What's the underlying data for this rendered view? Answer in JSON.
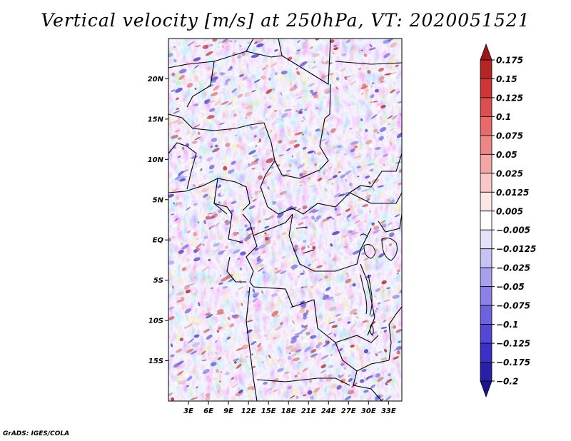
{
  "title": "Vertical velocity [m/s] at 250hPa, VT: 2020051521",
  "credit": "GrADS: IGES/COLA",
  "map": {
    "lon_range": [
      0,
      35
    ],
    "lat_range": [
      -20,
      25
    ],
    "lat_ticks": [
      {
        "value": 20,
        "label": "20N"
      },
      {
        "value": 15,
        "label": "15N"
      },
      {
        "value": 10,
        "label": "10N"
      },
      {
        "value": 5,
        "label": "5N"
      },
      {
        "value": 0,
        "label": "EQ"
      },
      {
        "value": -5,
        "label": "5S"
      },
      {
        "value": -10,
        "label": "10S"
      },
      {
        "value": -15,
        "label": "15S"
      }
    ],
    "lon_ticks": [
      {
        "value": 3,
        "label": "3E"
      },
      {
        "value": 6,
        "label": "6E"
      },
      {
        "value": 9,
        "label": "9E"
      },
      {
        "value": 12,
        "label": "12E"
      },
      {
        "value": 15,
        "label": "15E"
      },
      {
        "value": 18,
        "label": "18E"
      },
      {
        "value": 21,
        "label": "21E"
      },
      {
        "value": 24,
        "label": "24E"
      },
      {
        "value": 27,
        "label": "27E"
      },
      {
        "value": 30,
        "label": "30E"
      },
      {
        "value": 33,
        "label": "33E"
      }
    ]
  },
  "colorbar": {
    "labels": [
      "0.175",
      "0.15",
      "0.125",
      "0.1",
      "0.075",
      "0.05",
      "0.025",
      "0.0125",
      "0.005",
      "−0.005",
      "−0.0125",
      "−0.025",
      "−0.05",
      "−0.075",
      "−0.1",
      "−0.125",
      "−0.175",
      "−0.2"
    ],
    "colors": [
      "#a01616",
      "#b82323",
      "#cf3535",
      "#dd4e4e",
      "#e66a6a",
      "#ee8686",
      "#f5a5a5",
      "#fac6c6",
      "#fde6e6",
      "#ffffff",
      "#e4e2fb",
      "#c7c2f5",
      "#a7a0ef",
      "#8a80e8",
      "#6c62e0",
      "#5247d6",
      "#3a2fc6",
      "#2a1fa8",
      "#1c1390"
    ]
  }
}
